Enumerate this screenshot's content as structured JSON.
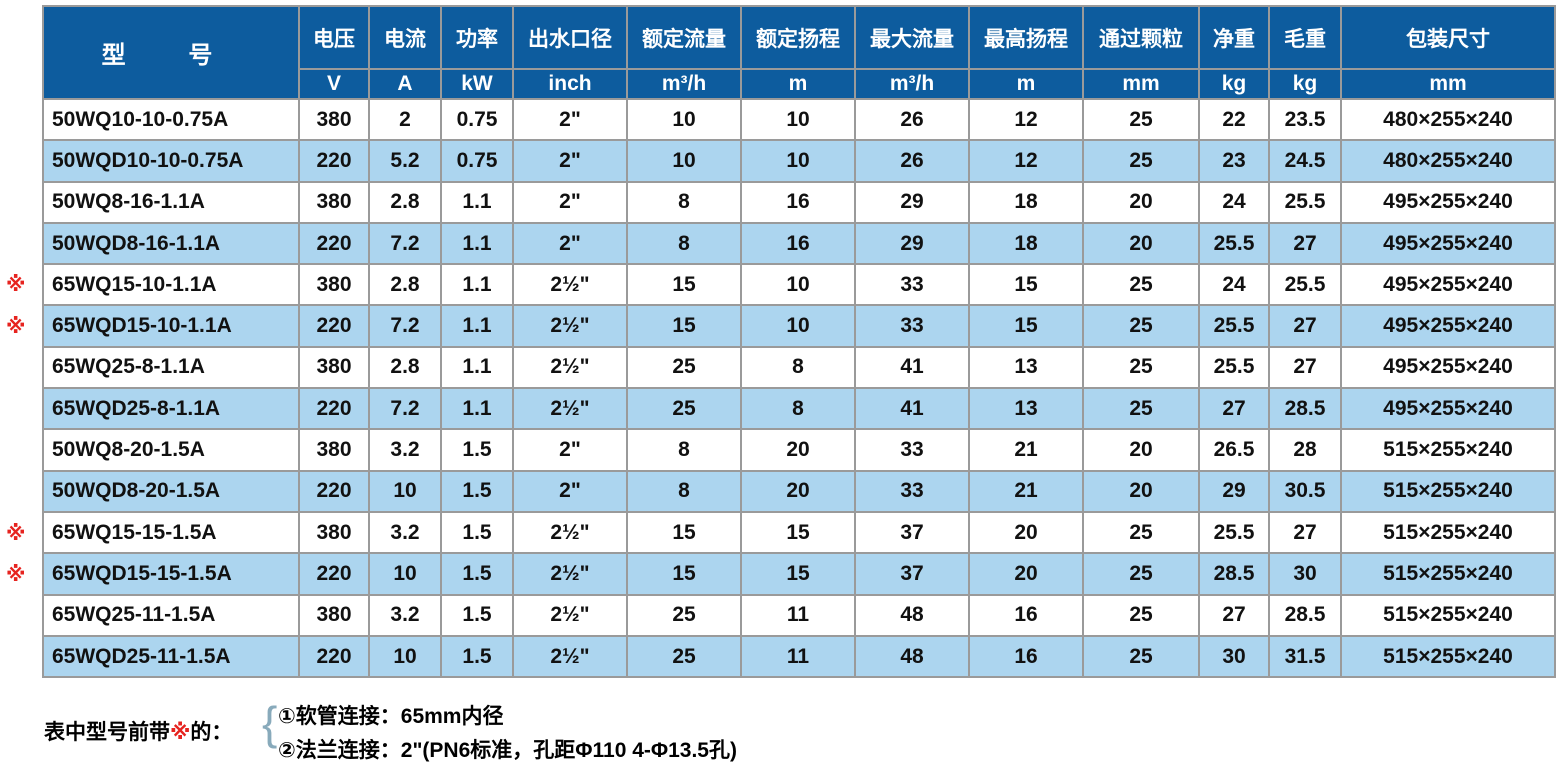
{
  "header": {
    "model": "型 号",
    "columns": [
      {
        "label": "电压",
        "unit": "V"
      },
      {
        "label": "电流",
        "unit": "A"
      },
      {
        "label": "功率",
        "unit": "kW"
      },
      {
        "label": "出水口径",
        "unit": "inch"
      },
      {
        "label": "额定流量",
        "unit": "m³/h"
      },
      {
        "label": "额定扬程",
        "unit": "m"
      },
      {
        "label": "最大流量",
        "unit": "m³/h"
      },
      {
        "label": "最高扬程",
        "unit": "m"
      },
      {
        "label": "通过颗粒",
        "unit": "mm"
      },
      {
        "label": "净重",
        "unit": "kg"
      },
      {
        "label": "毛重",
        "unit": "kg"
      },
      {
        "label": "包装尺寸",
        "unit": "mm"
      }
    ]
  },
  "mark_symbol": "※",
  "rows": [
    {
      "marked": false,
      "cells": [
        "50WQ10-10-0.75A",
        "380",
        "2",
        "0.75",
        "2\"",
        "10",
        "10",
        "26",
        "12",
        "25",
        "22",
        "23.5",
        "480×255×240"
      ]
    },
    {
      "marked": false,
      "cells": [
        "50WQD10-10-0.75A",
        "220",
        "5.2",
        "0.75",
        "2\"",
        "10",
        "10",
        "26",
        "12",
        "25",
        "23",
        "24.5",
        "480×255×240"
      ]
    },
    {
      "marked": false,
      "cells": [
        "50WQ8-16-1.1A",
        "380",
        "2.8",
        "1.1",
        "2\"",
        "8",
        "16",
        "29",
        "18",
        "20",
        "24",
        "25.5",
        "495×255×240"
      ]
    },
    {
      "marked": false,
      "cells": [
        "50WQD8-16-1.1A",
        "220",
        "7.2",
        "1.1",
        "2\"",
        "8",
        "16",
        "29",
        "18",
        "20",
        "25.5",
        "27",
        "495×255×240"
      ]
    },
    {
      "marked": true,
      "cells": [
        "65WQ15-10-1.1A",
        "380",
        "2.8",
        "1.1",
        "2½\"",
        "15",
        "10",
        "33",
        "15",
        "25",
        "24",
        "25.5",
        "495×255×240"
      ]
    },
    {
      "marked": true,
      "cells": [
        "65WQD15-10-1.1A",
        "220",
        "7.2",
        "1.1",
        "2½\"",
        "15",
        "10",
        "33",
        "15",
        "25",
        "25.5",
        "27",
        "495×255×240"
      ]
    },
    {
      "marked": false,
      "cells": [
        "65WQ25-8-1.1A",
        "380",
        "2.8",
        "1.1",
        "2½\"",
        "25",
        "8",
        "41",
        "13",
        "25",
        "25.5",
        "27",
        "495×255×240"
      ]
    },
    {
      "marked": false,
      "cells": [
        "65WQD25-8-1.1A",
        "220",
        "7.2",
        "1.1",
        "2½\"",
        "25",
        "8",
        "41",
        "13",
        "25",
        "27",
        "28.5",
        "495×255×240"
      ]
    },
    {
      "marked": false,
      "cells": [
        "50WQ8-20-1.5A",
        "380",
        "3.2",
        "1.5",
        "2\"",
        "8",
        "20",
        "33",
        "21",
        "20",
        "26.5",
        "28",
        "515×255×240"
      ]
    },
    {
      "marked": false,
      "cells": [
        "50WQD8-20-1.5A",
        "220",
        "10",
        "1.5",
        "2\"",
        "8",
        "20",
        "33",
        "21",
        "20",
        "29",
        "30.5",
        "515×255×240"
      ]
    },
    {
      "marked": true,
      "cells": [
        "65WQ15-15-1.5A",
        "380",
        "3.2",
        "1.5",
        "2½\"",
        "15",
        "15",
        "37",
        "20",
        "25",
        "25.5",
        "27",
        "515×255×240"
      ]
    },
    {
      "marked": true,
      "cells": [
        "65WQD15-15-1.5A",
        "220",
        "10",
        "1.5",
        "2½\"",
        "15",
        "15",
        "37",
        "20",
        "25",
        "28.5",
        "30",
        "515×255×240"
      ]
    },
    {
      "marked": false,
      "cells": [
        "65WQ25-11-1.5A",
        "380",
        "3.2",
        "1.5",
        "2½\"",
        "25",
        "11",
        "48",
        "16",
        "25",
        "27",
        "28.5",
        "515×255×240"
      ]
    },
    {
      "marked": false,
      "cells": [
        "65WQD25-11-1.5A",
        "220",
        "10",
        "1.5",
        "2½\"",
        "25",
        "11",
        "48",
        "16",
        "25",
        "30",
        "31.5",
        "515×255×240"
      ]
    }
  ],
  "note": {
    "prefix_before": "表中型号前带",
    "prefix_mark": "※",
    "prefix_after": "的：",
    "item1": "①软管连接：65mm内径",
    "item2": "②法兰连接：2\"(PN6标准，孔距Φ110  4-Φ13.5孔)"
  },
  "colors": {
    "header": "#0d5c9e",
    "stripe": "#acd5ef",
    "mark": "#e6231f"
  }
}
